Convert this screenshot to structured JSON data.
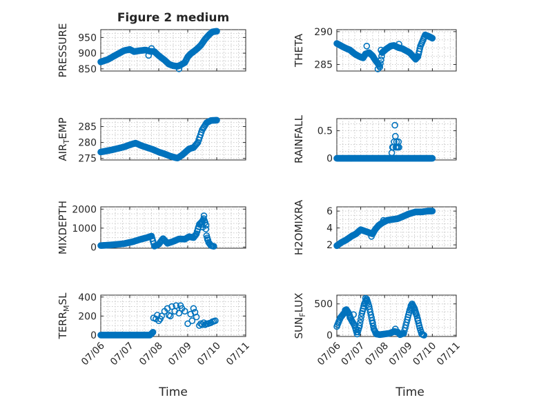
{
  "figure_title": "Figure 2 medium",
  "chart_data": [
    {
      "type": "scatter",
      "ylabel": "PRESSURE",
      "title": "Figure 2 medium",
      "ylim": [
        843,
        975
      ],
      "yticks": [
        850,
        900,
        950
      ],
      "xlim": [
        0,
        5
      ],
      "marker_color": "#0072BD",
      "grid": true,
      "keypoints": [
        [
          0.0,
          872
        ],
        [
          0.25,
          880
        ],
        [
          0.5,
          893
        ],
        [
          0.8,
          908
        ],
        [
          1.0,
          912
        ],
        [
          1.15,
          905
        ],
        [
          1.35,
          908
        ],
        [
          1.55,
          910
        ],
        [
          1.7,
          906
        ],
        [
          1.85,
          905
        ],
        [
          2.0,
          892
        ],
        [
          2.2,
          878
        ],
        [
          2.35,
          865
        ],
        [
          2.5,
          860
        ],
        [
          2.65,
          858
        ],
        [
          2.75,
          862
        ],
        [
          2.9,
          870
        ],
        [
          3.0,
          888
        ],
        [
          3.1,
          898
        ],
        [
          3.3,
          912
        ],
        [
          3.45,
          925
        ],
        [
          3.6,
          945
        ],
        [
          3.75,
          960
        ],
        [
          3.85,
          968
        ],
        [
          4.0,
          970
        ]
      ],
      "extra_points": [
        [
          1.65,
          893
        ],
        [
          1.75,
          915
        ],
        [
          2.7,
          850
        ]
      ]
    },
    {
      "type": "scatter",
      "ylabel": "THETA",
      "ylim": [
        284,
        290.3
      ],
      "yticks": [
        285,
        290
      ],
      "xlim": [
        0,
        5
      ],
      "marker_color": "#0072BD",
      "grid": true,
      "keypoints": [
        [
          0.0,
          288.2
        ],
        [
          0.3,
          287.6
        ],
        [
          0.55,
          287.2
        ],
        [
          0.75,
          286.6
        ],
        [
          0.95,
          286.2
        ],
        [
          1.1,
          286.0
        ],
        [
          1.2,
          286.6
        ],
        [
          1.35,
          286.8
        ],
        [
          1.5,
          286.3
        ],
        [
          1.6,
          285.7
        ],
        [
          1.75,
          285.0
        ],
        [
          1.8,
          284.6
        ],
        [
          1.9,
          286.8
        ],
        [
          2.05,
          287.3
        ],
        [
          2.25,
          287.8
        ],
        [
          2.4,
          287.9
        ],
        [
          2.55,
          287.6
        ],
        [
          2.75,
          287.4
        ],
        [
          2.9,
          287.1
        ],
        [
          3.05,
          286.8
        ],
        [
          3.2,
          286.2
        ],
        [
          3.3,
          285.8
        ],
        [
          3.4,
          286.2
        ],
        [
          3.5,
          287.8
        ],
        [
          3.7,
          289.5
        ],
        [
          3.9,
          289.2
        ],
        [
          4.0,
          289.0
        ]
      ],
      "extra_points": [
        [
          1.25,
          287.8
        ],
        [
          1.85,
          287.2
        ],
        [
          1.72,
          284.3
        ],
        [
          2.6,
          288.1
        ]
      ]
    },
    {
      "type": "scatter",
      "ylabel": "AIR_TEMP",
      "ylabel_parts": [
        "AIR",
        "T",
        "EMP"
      ],
      "ylim": [
        274.5,
        287.5
      ],
      "yticks": [
        275,
        280,
        285
      ],
      "xlim": [
        0,
        5
      ],
      "marker_color": "#0072BD",
      "grid": true,
      "keypoints": [
        [
          0.0,
          277.0
        ],
        [
          0.4,
          277.7
        ],
        [
          0.8,
          278.6
        ],
        [
          1.05,
          279.4
        ],
        [
          1.2,
          279.8
        ],
        [
          1.4,
          279.0
        ],
        [
          1.6,
          278.4
        ],
        [
          1.8,
          277.8
        ],
        [
          2.0,
          277.0
        ],
        [
          2.2,
          276.4
        ],
        [
          2.4,
          275.7
        ],
        [
          2.55,
          275.3
        ],
        [
          2.65,
          275.1
        ],
        [
          2.8,
          276.0
        ],
        [
          2.95,
          277.2
        ],
        [
          3.05,
          278.0
        ],
        [
          3.2,
          278.4
        ],
        [
          3.35,
          280.0
        ],
        [
          3.5,
          284.0
        ],
        [
          3.65,
          286.2
        ],
        [
          3.8,
          286.9
        ],
        [
          4.0,
          287.0
        ]
      ],
      "extra_points": []
    },
    {
      "type": "scatter",
      "ylabel": "RAINFALL",
      "ylim": [
        -0.03,
        0.72
      ],
      "yticks": [
        0,
        0.5
      ],
      "xlim": [
        0,
        5
      ],
      "marker_color": "#0072BD",
      "grid": true,
      "keypoints": [
        [
          0.0,
          0
        ],
        [
          2.25,
          0
        ],
        [
          2.45,
          0
        ],
        [
          2.55,
          0
        ],
        [
          4.0,
          0
        ]
      ],
      "extra_points": [
        [
          2.3,
          0.1
        ],
        [
          2.33,
          0.2
        ],
        [
          2.36,
          0.2
        ],
        [
          2.4,
          0.3
        ],
        [
          2.43,
          0.6
        ],
        [
          2.45,
          0.4
        ],
        [
          2.47,
          0.2
        ],
        [
          2.5,
          0.3
        ],
        [
          2.52,
          0.2
        ],
        [
          2.55,
          0.2
        ],
        [
          2.58,
          0.3
        ],
        [
          2.6,
          0.2
        ]
      ]
    },
    {
      "type": "scatter",
      "ylabel": "MIXDEPTH",
      "ylim": [
        -60,
        2120
      ],
      "yticks": [
        0,
        1000,
        2000
      ],
      "xlim": [
        0,
        5
      ],
      "marker_color": "#0072BD",
      "grid": true,
      "keypoints": [
        [
          0.0,
          80
        ],
        [
          0.4,
          120
        ],
        [
          0.8,
          180
        ],
        [
          1.1,
          280
        ],
        [
          1.35,
          400
        ],
        [
          1.6,
          500
        ],
        [
          1.75,
          580
        ],
        [
          1.85,
          50
        ],
        [
          2.0,
          150
        ],
        [
          2.15,
          450
        ],
        [
          2.3,
          200
        ],
        [
          2.5,
          300
        ],
        [
          2.7,
          430
        ],
        [
          2.9,
          420
        ],
        [
          3.05,
          550
        ],
        [
          3.2,
          500
        ],
        [
          3.3,
          700
        ],
        [
          3.4,
          1200
        ],
        [
          3.5,
          1350
        ],
        [
          3.55,
          1500
        ],
        [
          3.6,
          1300
        ],
        [
          3.65,
          600
        ],
        [
          3.72,
          250
        ],
        [
          3.8,
          80
        ],
        [
          3.9,
          40
        ]
      ],
      "extra_points": [
        [
          3.52,
          1050
        ],
        [
          3.48,
          1200
        ],
        [
          3.56,
          1650
        ],
        [
          3.63,
          1150
        ],
        [
          3.68,
          400
        ]
      ]
    },
    {
      "type": "scatter",
      "ylabel": "H2OMIXRA",
      "ylim": [
        1.6,
        6.5
      ],
      "yticks": [
        2,
        4,
        6
      ],
      "xlim": [
        0,
        5
      ],
      "marker_color": "#0072BD",
      "grid": true,
      "keypoints": [
        [
          0.0,
          1.9
        ],
        [
          0.2,
          2.3
        ],
        [
          0.4,
          2.6
        ],
        [
          0.6,
          3.0
        ],
        [
          0.8,
          3.3
        ],
        [
          1.0,
          3.8
        ],
        [
          1.2,
          3.6
        ],
        [
          1.4,
          3.4
        ],
        [
          1.5,
          3.3
        ],
        [
          1.6,
          3.8
        ],
        [
          1.75,
          4.3
        ],
        [
          1.9,
          4.6
        ],
        [
          2.1,
          4.9
        ],
        [
          2.3,
          5.0
        ],
        [
          2.55,
          5.1
        ],
        [
          2.8,
          5.4
        ],
        [
          3.05,
          5.7
        ],
        [
          3.3,
          5.9
        ],
        [
          3.55,
          5.9
        ],
        [
          3.8,
          6.0
        ],
        [
          4.0,
          6.0
        ]
      ],
      "extra_points": [
        [
          1.45,
          3.0
        ],
        [
          1.95,
          4.9
        ]
      ]
    },
    {
      "type": "scatter",
      "ylabel": "TERR_MSL",
      "ylabel_parts": [
        "TERR",
        "M",
        "SL"
      ],
      "ylim": [
        -15,
        420
      ],
      "yticks": [
        0,
        200,
        400
      ],
      "xlim": [
        0,
        5
      ],
      "marker_color": "#0072BD",
      "grid": true,
      "keypoints": [
        [
          0.0,
          0
        ],
        [
          1.55,
          0
        ],
        [
          1.7,
          0
        ],
        [
          1.8,
          30
        ]
      ],
      "extra_points": [
        [
          1.82,
          180
        ],
        [
          1.9,
          170
        ],
        [
          2.0,
          150
        ],
        [
          2.1,
          200
        ],
        [
          2.2,
          250
        ],
        [
          2.3,
          280
        ],
        [
          2.4,
          200
        ],
        [
          2.45,
          300
        ],
        [
          2.55,
          250
        ],
        [
          2.6,
          310
        ],
        [
          2.7,
          230
        ],
        [
          2.8,
          280
        ],
        [
          2.9,
          250
        ],
        [
          3.0,
          120
        ],
        [
          3.1,
          220
        ],
        [
          3.2,
          280
        ],
        [
          3.3,
          190
        ],
        [
          3.4,
          100
        ],
        [
          3.5,
          110
        ],
        [
          3.6,
          110
        ],
        [
          3.7,
          120
        ],
        [
          3.8,
          130
        ],
        [
          3.9,
          145
        ],
        [
          1.95,
          210
        ],
        [
          2.05,
          170
        ],
        [
          2.35,
          210
        ],
        [
          2.75,
          310
        ],
        [
          3.15,
          150
        ],
        [
          3.25,
          240
        ],
        [
          3.45,
          120
        ],
        [
          3.55,
          130
        ],
        [
          3.65,
          120
        ],
        [
          3.75,
          125
        ],
        [
          3.85,
          140
        ],
        [
          3.95,
          150
        ]
      ]
    },
    {
      "type": "scatter",
      "ylabel": "SUN_FLUX",
      "ylabel_parts": [
        "SUN",
        "F",
        "LUX"
      ],
      "ylim": [
        -20,
        640
      ],
      "yticks": [
        0,
        500
      ],
      "xlim": [
        0,
        5
      ],
      "marker_color": "#0072BD",
      "grid": true,
      "keypoints": [
        [
          0.0,
          140
        ],
        [
          0.15,
          280
        ],
        [
          0.3,
          350
        ],
        [
          0.4,
          410
        ],
        [
          0.5,
          350
        ],
        [
          0.6,
          250
        ],
        [
          0.75,
          150
        ],
        [
          0.85,
          20
        ],
        [
          0.95,
          150
        ],
        [
          1.05,
          350
        ],
        [
          1.15,
          500
        ],
        [
          1.25,
          580
        ],
        [
          1.35,
          460
        ],
        [
          1.45,
          280
        ],
        [
          1.55,
          100
        ],
        [
          1.65,
          20
        ],
        [
          1.8,
          10
        ],
        [
          2.0,
          20
        ],
        [
          2.2,
          30
        ],
        [
          2.4,
          60
        ],
        [
          2.55,
          50
        ],
        [
          2.65,
          10
        ],
        [
          2.8,
          30
        ],
        [
          2.95,
          250
        ],
        [
          3.05,
          400
        ],
        [
          3.15,
          500
        ],
        [
          3.25,
          430
        ],
        [
          3.35,
          310
        ],
        [
          3.45,
          150
        ],
        [
          3.55,
          20
        ],
        [
          3.65,
          0
        ]
      ],
      "extra_points": [
        [
          0.35,
          400
        ],
        [
          0.55,
          280
        ],
        [
          0.7,
          330
        ],
        [
          1.1,
          420
        ],
        [
          1.2,
          590
        ],
        [
          1.3,
          520
        ],
        [
          1.5,
          200
        ],
        [
          2.45,
          100
        ],
        [
          3.1,
          470
        ],
        [
          3.3,
          350
        ],
        [
          3.4,
          240
        ]
      ]
    }
  ],
  "x_tick_labels": [
    "07/06",
    "07/07",
    "07/08",
    "07/09",
    "07/10",
    "07/11"
  ],
  "x_axis_label_left": "Time",
  "x_axis_label_right": "Time"
}
